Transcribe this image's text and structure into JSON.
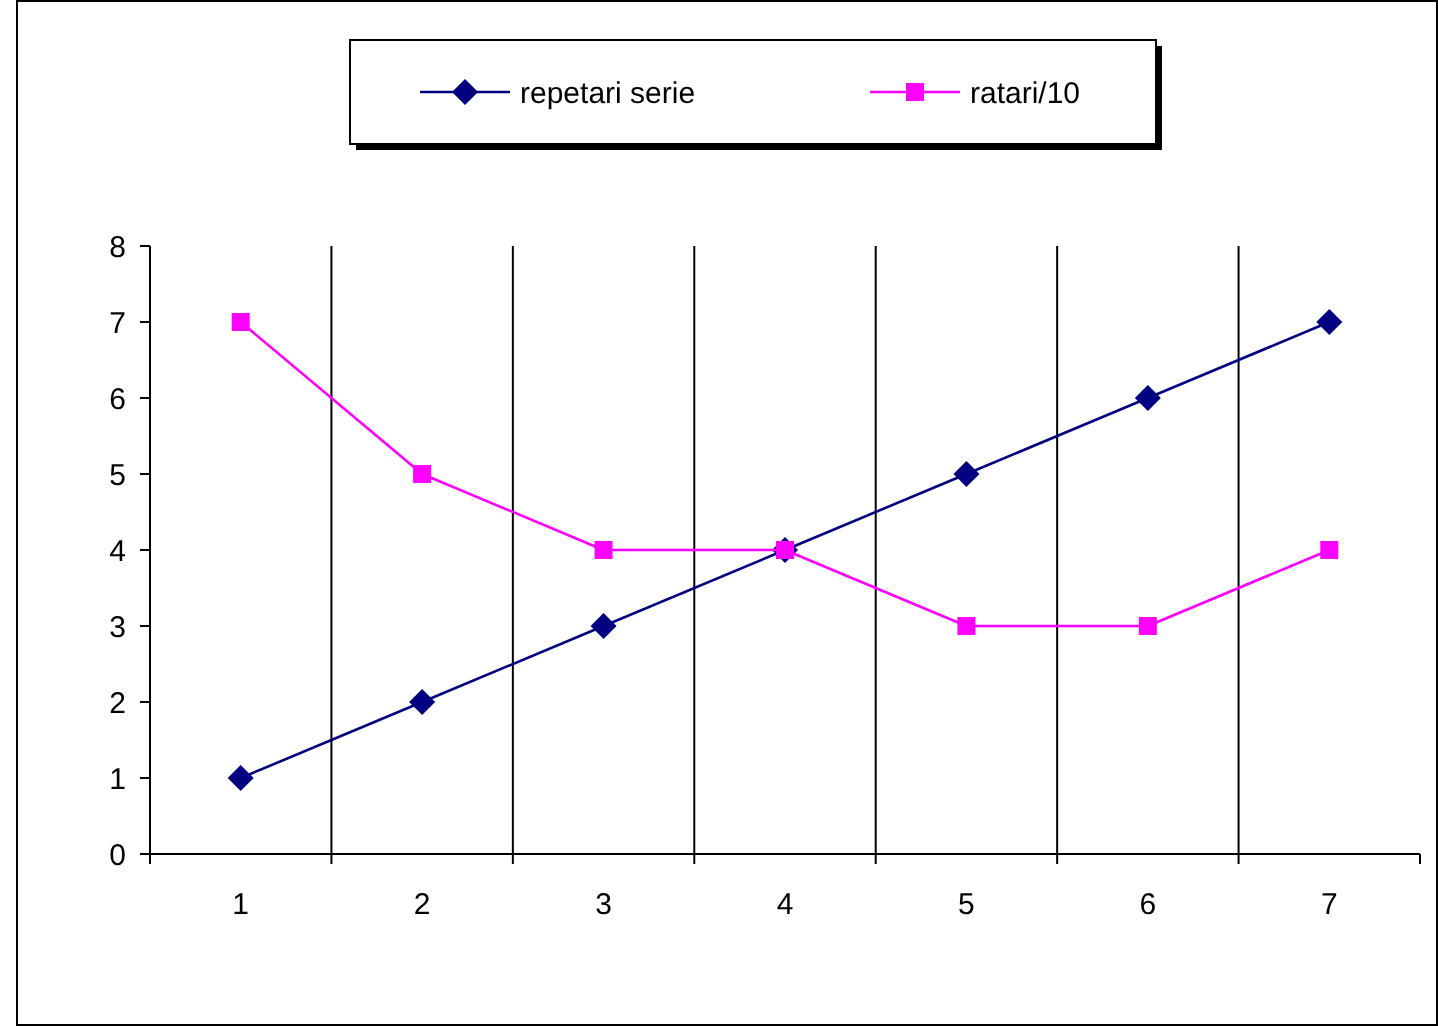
{
  "chart_data": {
    "type": "line",
    "categories": [
      "1",
      "2",
      "3",
      "4",
      "5",
      "6",
      "7"
    ],
    "series": [
      {
        "name": "repetari serie",
        "color": "#000080",
        "marker": "diamond",
        "values": [
          1,
          2,
          3,
          4,
          5,
          6,
          7
        ]
      },
      {
        "name": "ratari/10",
        "color": "#ff00ff",
        "marker": "square",
        "values": [
          7,
          5,
          4,
          4,
          3,
          3,
          4
        ]
      }
    ],
    "ylim": [
      0,
      8
    ],
    "yticks": [
      0,
      1,
      2,
      3,
      4,
      5,
      6,
      7,
      8
    ],
    "grid": "x",
    "legend": "top",
    "line_style": "solid"
  }
}
